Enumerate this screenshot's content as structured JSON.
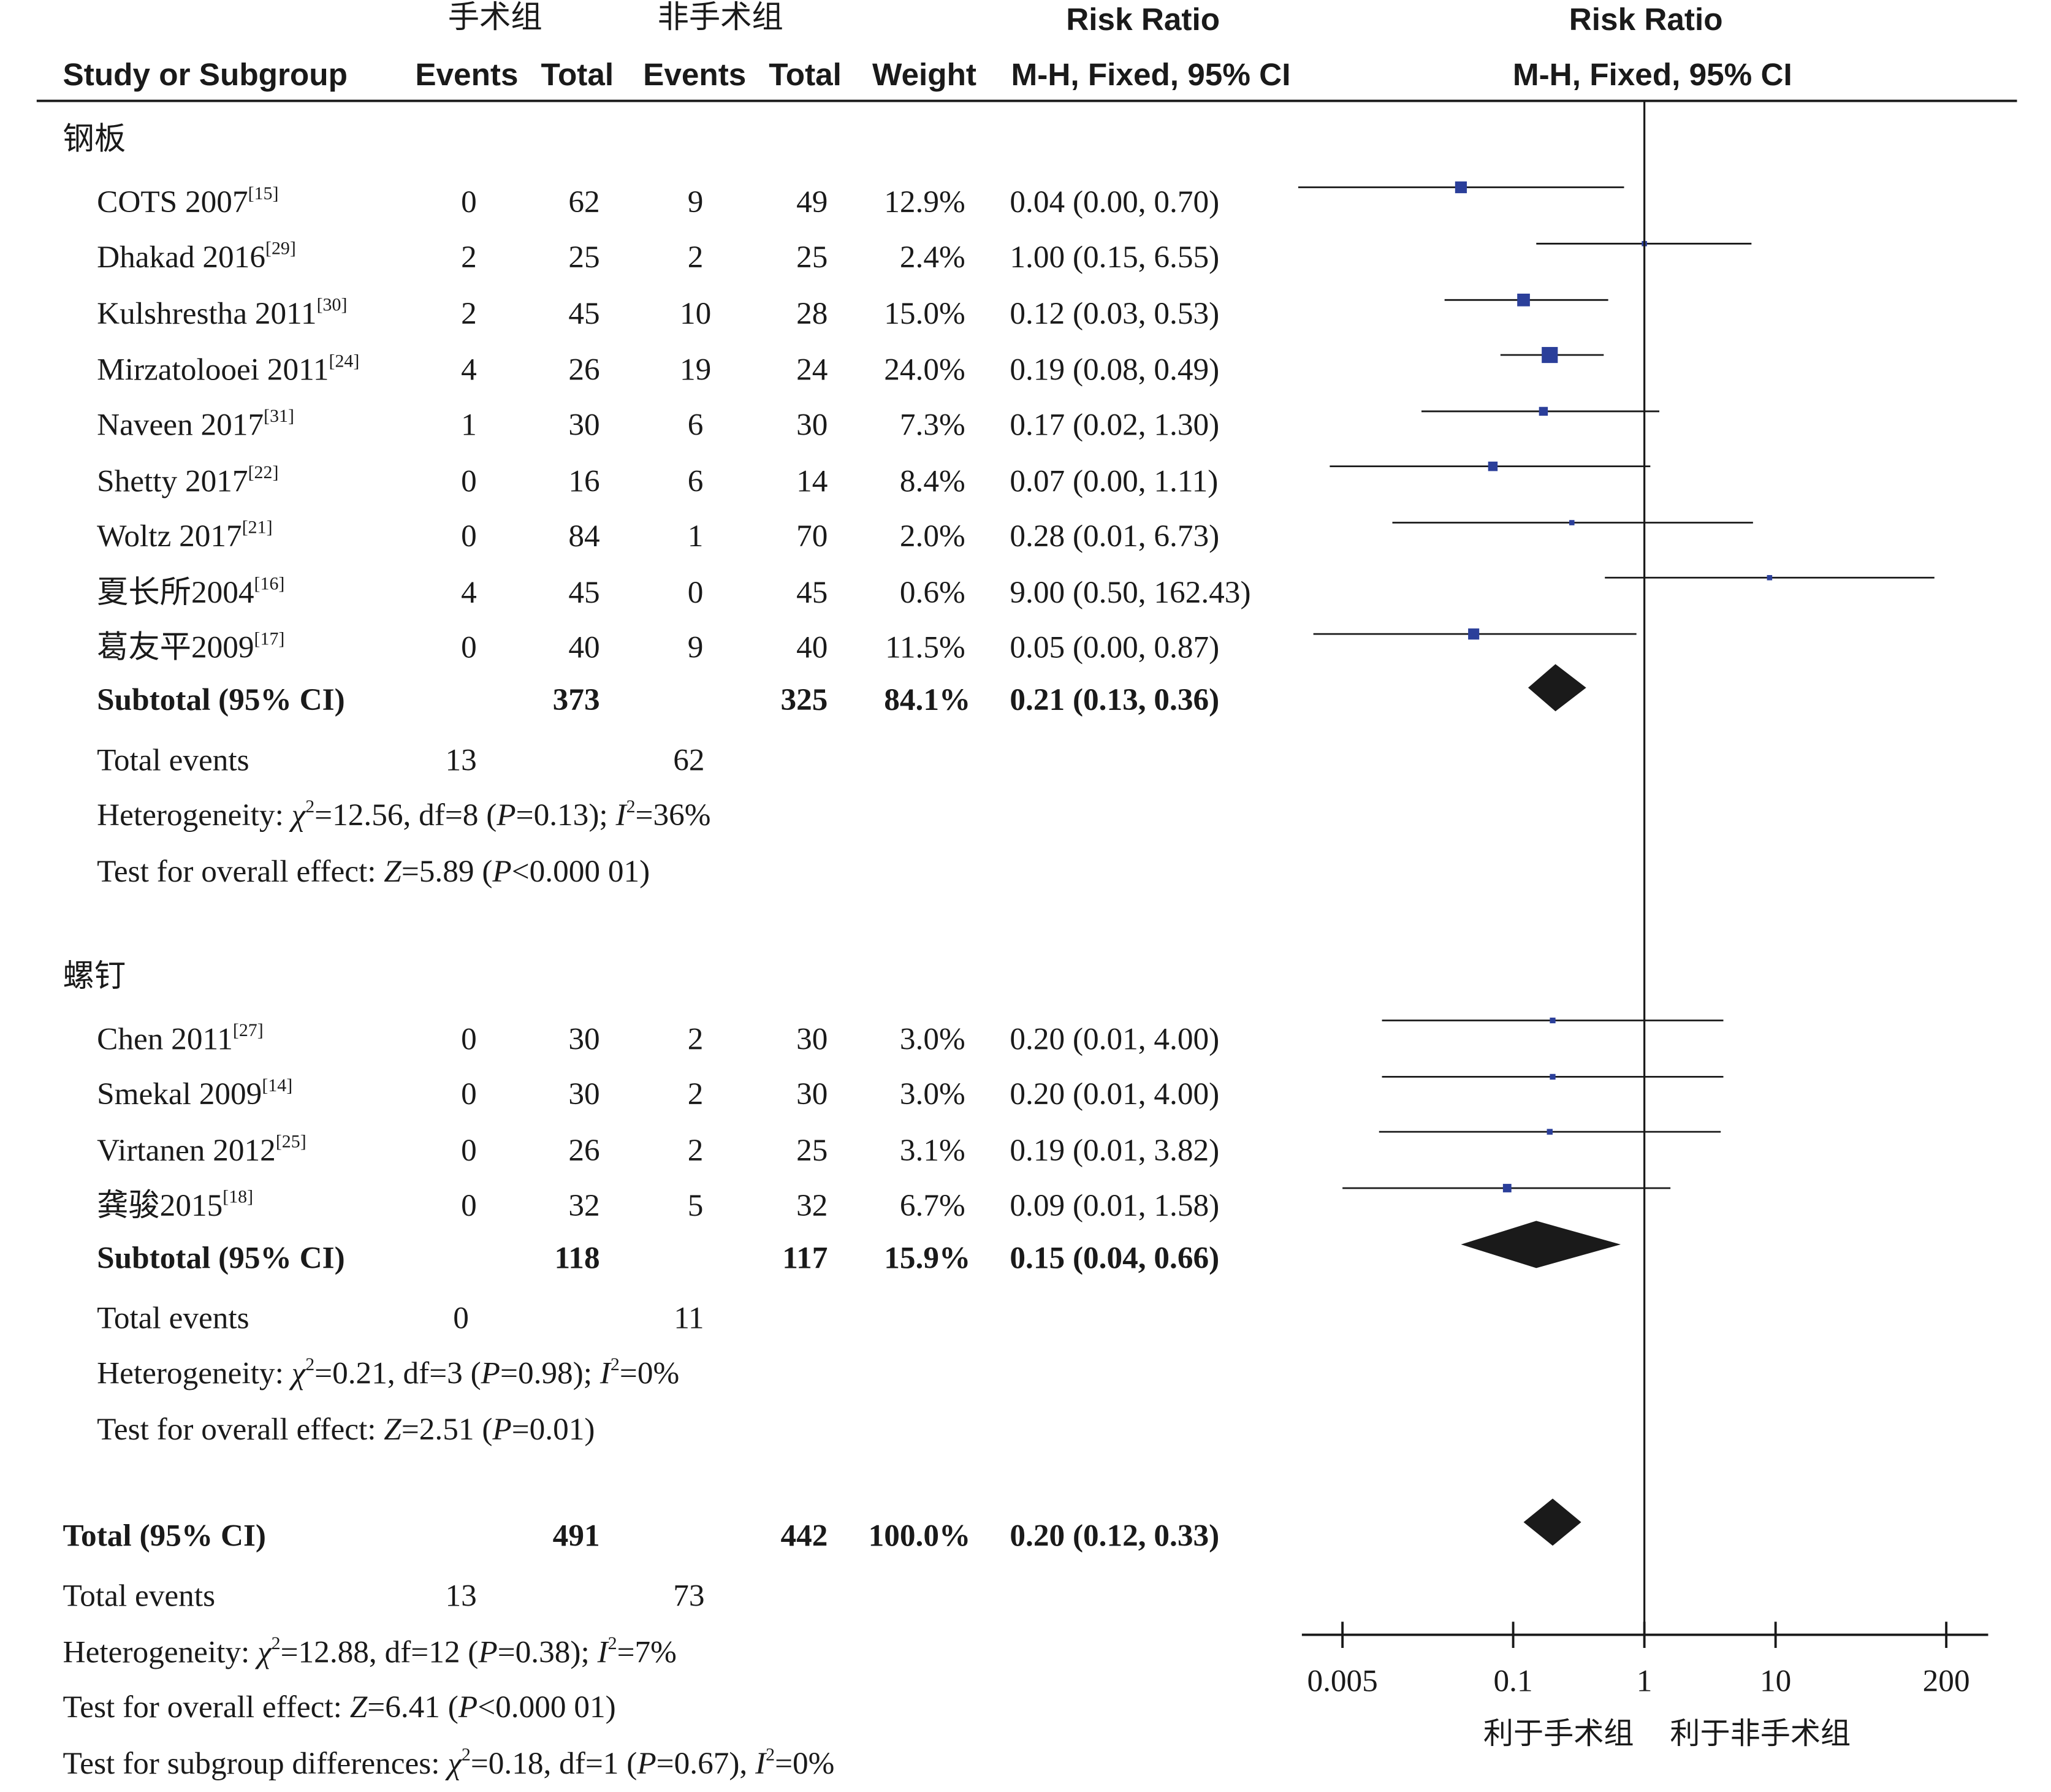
{
  "header": {
    "group1": "手术组",
    "group2": "非手术组",
    "rr_title": "Risk Ratio",
    "study_col": "Study or Subgroup",
    "events": "Events",
    "total": "Total",
    "weight": "Weight",
    "rr_method": "M-H, Fixed, 95% CI",
    "plot_title": "Risk Ratio",
    "plot_method": "M-H, Fixed, 95% CI"
  },
  "chart_data": {
    "type": "forest",
    "x_scale": "log",
    "x_ticks": [
      0.005,
      0.1,
      1,
      10,
      200
    ],
    "x_tick_labels": [
      "0.005",
      "0.1",
      "1",
      "10",
      "200"
    ],
    "xlabel_left": "利于手术组",
    "xlabel_right": "利于非手术组",
    "subgroups": [
      {
        "name": "钢板",
        "studies": [
          {
            "study": "COTS 2007",
            "ref": "[15]",
            "e1": "0",
            "t1": "62",
            "e2": "9",
            "t2": "49",
            "weight": "12.9%",
            "ci_text": "0.04 (0.00, 0.70)",
            "rr": 0.04,
            "lo": 0.0023,
            "hi": 0.7
          },
          {
            "study": "Dhakad 2016",
            "ref": "[29]",
            "e1": "2",
            "t1": "25",
            "e2": "2",
            "t2": "25",
            "weight": "2.4%",
            "ci_text": "1.00 (0.15, 6.55)",
            "rr": 1.0,
            "lo": 0.15,
            "hi": 6.55
          },
          {
            "study": "Kulshrestha 2011",
            "ref": "[30]",
            "e1": "2",
            "t1": "45",
            "e2": "10",
            "t2": "28",
            "weight": "15.0%",
            "ci_text": "0.12 (0.03, 0.53)",
            "rr": 0.12,
            "lo": 0.03,
            "hi": 0.53
          },
          {
            "study": "Mirzatolooei 2011",
            "ref": "[24]",
            "e1": "4",
            "t1": "26",
            "e2": "19",
            "t2": "24",
            "weight": "24.0%",
            "ci_text": "0.19 (0.08, 0.49)",
            "rr": 0.19,
            "lo": 0.08,
            "hi": 0.49
          },
          {
            "study": "Naveen 2017",
            "ref": "[31]",
            "e1": "1",
            "t1": "30",
            "e2": "6",
            "t2": "30",
            "weight": "7.3%",
            "ci_text": "0.17 (0.02, 1.30)",
            "rr": 0.17,
            "lo": 0.02,
            "hi": 1.3
          },
          {
            "study": "Shetty 2017",
            "ref": "[22]",
            "e1": "0",
            "t1": "16",
            "e2": "6",
            "t2": "14",
            "weight": "8.4%",
            "ci_text": "0.07 (0.00, 1.11)",
            "rr": 0.07,
            "lo": 0.004,
            "hi": 1.11
          },
          {
            "study": "Woltz 2017",
            "ref": "[21]",
            "e1": "0",
            "t1": "84",
            "e2": "1",
            "t2": "70",
            "weight": "2.0%",
            "ci_text": "0.28 (0.01, 6.73)",
            "rr": 0.28,
            "lo": 0.012,
            "hi": 6.73
          },
          {
            "study": "夏长所2004",
            "ref": "[16]",
            "e1": "4",
            "t1": "45",
            "e2": "0",
            "t2": "45",
            "weight": "0.6%",
            "ci_text": "9.00 (0.50, 162.43)",
            "rr": 9.0,
            "lo": 0.5,
            "hi": 162.43
          },
          {
            "study": "葛友平2009",
            "ref": "[17]",
            "e1": "0",
            "t1": "40",
            "e2": "9",
            "t2": "40",
            "weight": "11.5%",
            "ci_text": "0.05 (0.00, 0.87)",
            "rr": 0.05,
            "lo": 0.003,
            "hi": 0.87
          }
        ],
        "subtotal": {
          "label": "Subtotal (95% CI)",
          "t1": "373",
          "t2": "325",
          "weight": "84.1%",
          "ci_text": "0.21 (0.13, 0.36)",
          "rr": 0.21,
          "lo": 0.13,
          "hi": 0.36
        },
        "total_events": {
          "label": "Total events",
          "e1": "13",
          "e2": "62"
        },
        "heterogeneity": {
          "label": "Heterogeneity: ",
          "chi": "=12.56, df=8 (",
          "p": "=0.13); ",
          "i2": "=36%"
        },
        "overall": {
          "label": "Test for overall effect: ",
          "z": "=5.89 (",
          "p": "<0.000 01)"
        }
      },
      {
        "name": "螺钉",
        "studies": [
          {
            "study": "Chen 2011",
            "ref": "[27]",
            "e1": "0",
            "t1": "30",
            "e2": "2",
            "t2": "30",
            "weight": "3.0%",
            "ci_text": "0.20 (0.01, 4.00)",
            "rr": 0.2,
            "lo": 0.01,
            "hi": 4.0
          },
          {
            "study": "Smekal 2009",
            "ref": "[14]",
            "e1": "0",
            "t1": "30",
            "e2": "2",
            "t2": "30",
            "weight": "3.0%",
            "ci_text": "0.20 (0.01, 4.00)",
            "rr": 0.2,
            "lo": 0.01,
            "hi": 4.0
          },
          {
            "study": "Virtanen 2012",
            "ref": "[25]",
            "e1": "0",
            "t1": "26",
            "e2": "2",
            "t2": "25",
            "weight": "3.1%",
            "ci_text": "0.19 (0.01, 3.82)",
            "rr": 0.19,
            "lo": 0.0095,
            "hi": 3.82
          },
          {
            "study": "龚骏2015",
            "ref": "[18]",
            "e1": "0",
            "t1": "32",
            "e2": "5",
            "t2": "32",
            "weight": "6.7%",
            "ci_text": "0.09 (0.01, 1.58)",
            "rr": 0.09,
            "lo": 0.005,
            "hi": 1.58
          }
        ],
        "subtotal": {
          "label": "Subtotal (95% CI)",
          "t1": "118",
          "t2": "117",
          "weight": "15.9%",
          "ci_text": "0.15 (0.04, 0.66)",
          "rr": 0.15,
          "lo": 0.04,
          "hi": 0.66
        },
        "total_events": {
          "label": "Total events",
          "e1": "0",
          "e2": "11"
        },
        "heterogeneity": {
          "label": "Heterogeneity: ",
          "chi": "=0.21, df=3 (",
          "p": "=0.98); ",
          "i2": "=0%"
        },
        "overall": {
          "label": "Test for overall effect: ",
          "z": "=2.51 (",
          "p": "=0.01)"
        }
      }
    ],
    "total": {
      "label": "Total (95% CI)",
      "t1": "491",
      "t2": "442",
      "weight": "100.0%",
      "ci_text": "0.20 (0.12, 0.33)",
      "rr": 0.2,
      "lo": 0.12,
      "hi": 0.33
    },
    "total_events": {
      "label": "Total events",
      "e1": "13",
      "e2": "73"
    },
    "heterogeneity": {
      "label": "Heterogeneity: ",
      "chi": "=12.88, df=12 (",
      "p": "=0.38); ",
      "i2": "=7%"
    },
    "overall": {
      "label": "Test for overall effect: ",
      "z": "=6.41 (",
      "p": "<0.000 01)"
    },
    "subgroup_diff": {
      "label": "Test for subgroup differences: ",
      "chi": "=0.18, df=1 (",
      "p": "=0.67), ",
      "i2": "=0%"
    },
    "colors": {
      "square": "#2b3f9a",
      "diamond": "#1a1a1a",
      "line": "#1a1a1a"
    }
  }
}
